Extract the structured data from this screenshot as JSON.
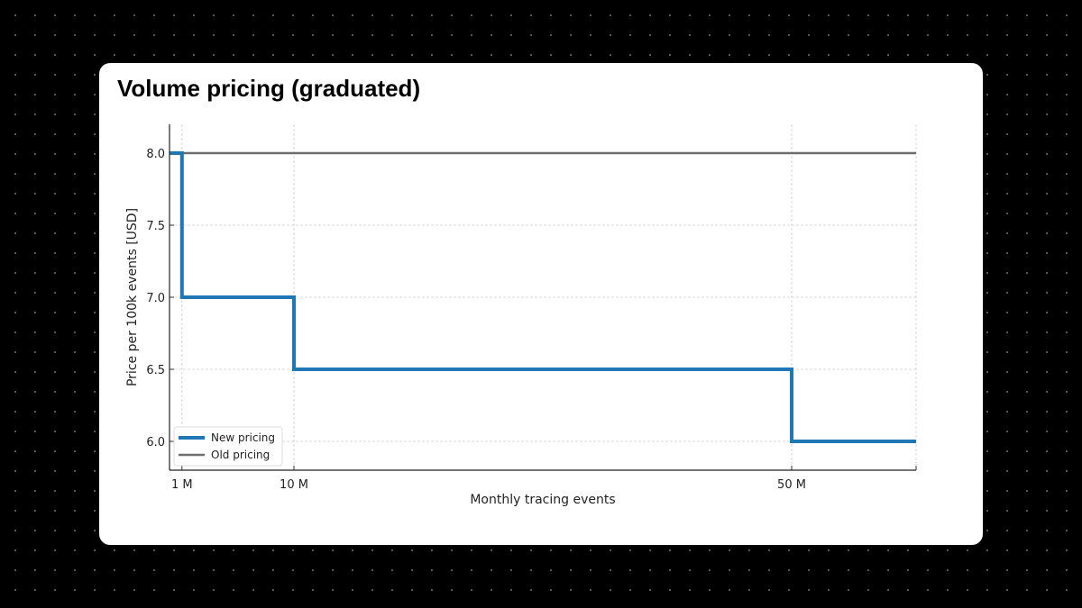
{
  "title": "Volume pricing (graduated)",
  "chart_data": {
    "type": "line",
    "step": "post",
    "xlabel": "Monthly tracing events",
    "ylabel": "Price per 100k events [USD]",
    "xlim": [
      0,
      60
    ],
    "ylim": [
      5.8,
      8.2
    ],
    "x_ticks": [
      {
        "value": 1,
        "label": "1 M"
      },
      {
        "value": 10,
        "label": "10 M"
      },
      {
        "value": 50,
        "label": "50 M"
      },
      {
        "value": 60,
        "label": ""
      }
    ],
    "y_ticks": [
      {
        "value": 6.0,
        "label": "6.0"
      },
      {
        "value": 6.5,
        "label": "6.5"
      },
      {
        "value": 7.0,
        "label": "7.0"
      },
      {
        "value": 7.5,
        "label": "7.5"
      },
      {
        "value": 8.0,
        "label": "8.0"
      }
    ],
    "grid": true,
    "legend_position": "bottom-left",
    "series": [
      {
        "name": "New pricing",
        "color": "#1f77b4",
        "x": [
          0,
          1,
          10,
          50,
          60
        ],
        "y": [
          8.0,
          7.0,
          6.5,
          6.0,
          6.0
        ]
      },
      {
        "name": "Old pricing",
        "color": "#6e6e6e",
        "x": [
          0,
          60
        ],
        "y": [
          8.0,
          8.0
        ]
      }
    ]
  }
}
